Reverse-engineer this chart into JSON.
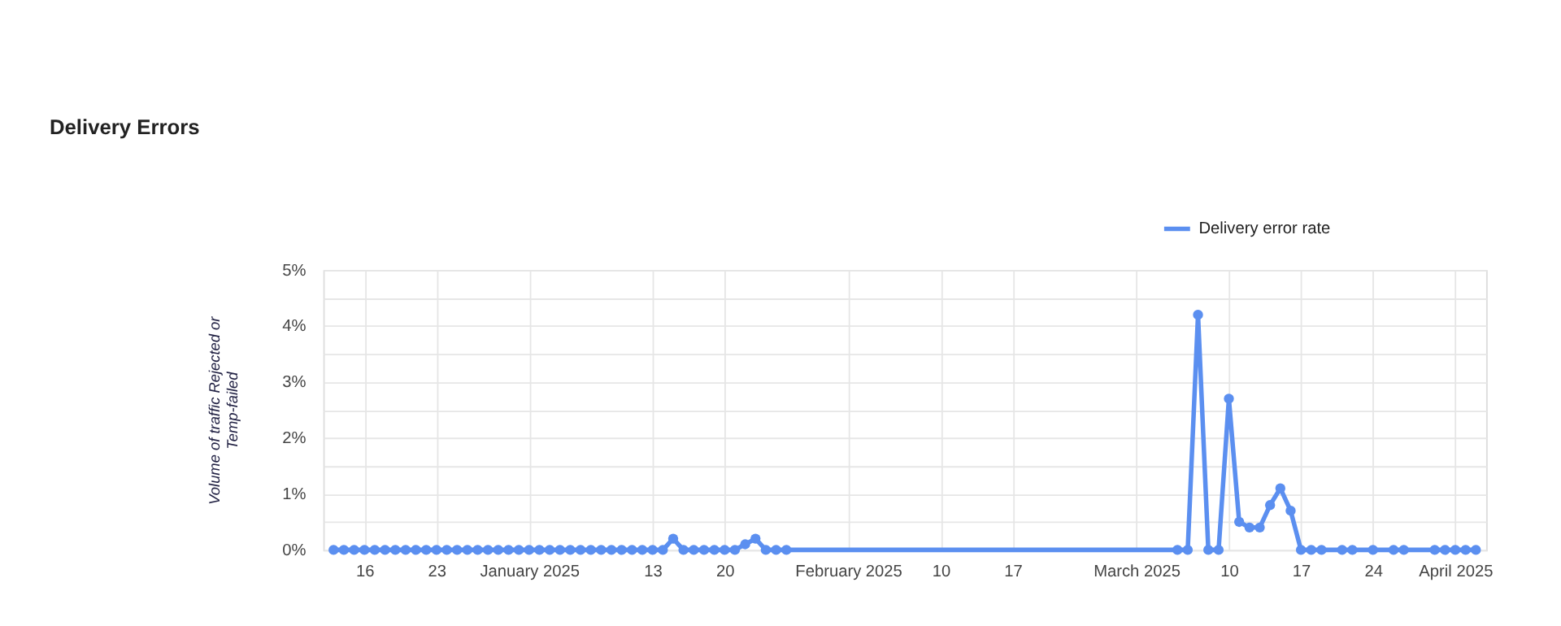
{
  "chart_data": {
    "type": "line",
    "title": "Delivery Errors",
    "ylabel": "Volume of traffic Rejected or Temp-failed",
    "x": [
      "2024-12-13",
      "2024-12-14",
      "2024-12-15",
      "2024-12-16",
      "2024-12-17",
      "2024-12-18",
      "2024-12-19",
      "2024-12-20",
      "2024-12-21",
      "2024-12-22",
      "2024-12-23",
      "2024-12-24",
      "2024-12-25",
      "2024-12-26",
      "2024-12-27",
      "2024-12-28",
      "2024-12-29",
      "2024-12-30",
      "2024-12-31",
      "2025-01-01",
      "2025-01-02",
      "2025-01-03",
      "2025-01-04",
      "2025-01-05",
      "2025-01-06",
      "2025-01-07",
      "2025-01-08",
      "2025-01-09",
      "2025-01-10",
      "2025-01-11",
      "2025-01-12",
      "2025-01-13",
      "2025-01-14",
      "2025-01-15",
      "2025-01-16",
      "2025-01-17",
      "2025-01-18",
      "2025-01-19",
      "2025-01-20",
      "2025-01-21",
      "2025-01-22",
      "2025-01-23",
      "2025-01-24",
      "2025-01-25",
      "2025-01-26",
      "2025-03-05",
      "2025-03-06",
      "2025-03-07",
      "2025-03-08",
      "2025-03-09",
      "2025-03-10",
      "2025-03-11",
      "2025-03-12",
      "2025-03-13",
      "2025-03-14",
      "2025-03-15",
      "2025-03-16",
      "2025-03-17",
      "2025-03-18",
      "2025-03-19",
      "2025-03-21",
      "2025-03-22",
      "2025-03-24",
      "2025-03-26",
      "2025-03-27",
      "2025-03-30",
      "2025-03-31",
      "2025-04-01",
      "2025-04-02",
      "2025-04-03"
    ],
    "series": [
      {
        "name": "Delivery error rate",
        "color": "#5b8ff0",
        "values": [
          0,
          0,
          0,
          0,
          0,
          0,
          0,
          0,
          0,
          0,
          0,
          0,
          0,
          0,
          0,
          0,
          0,
          0,
          0,
          0,
          0,
          0,
          0,
          0,
          0,
          0,
          0,
          0,
          0,
          0,
          0,
          0,
          0,
          0.2,
          0,
          0,
          0,
          0,
          0,
          0,
          0.1,
          0.2,
          0,
          0,
          0,
          0,
          0,
          4.2,
          0,
          0,
          2.7,
          0.5,
          0.4,
          0.4,
          0.8,
          1.1,
          0.7,
          0,
          0,
          0,
          0,
          0,
          0,
          0,
          0,
          0,
          0,
          0,
          0,
          0
        ]
      }
    ],
    "xlim": [
      "2024-12-12",
      "2025-04-04"
    ],
    "xticks": [
      {
        "value": "2024-12-16",
        "label": "16"
      },
      {
        "value": "2024-12-23",
        "label": "23"
      },
      {
        "value": "2025-01-01",
        "label": "January 2025"
      },
      {
        "value": "2025-01-13",
        "label": "13"
      },
      {
        "value": "2025-01-20",
        "label": "20"
      },
      {
        "value": "2025-02-01",
        "label": "February 2025"
      },
      {
        "value": "2025-02-10",
        "label": "10"
      },
      {
        "value": "2025-02-17",
        "label": "17"
      },
      {
        "value": "2025-03-01",
        "label": "March 2025"
      },
      {
        "value": "2025-03-10",
        "label": "10"
      },
      {
        "value": "2025-03-17",
        "label": "17"
      },
      {
        "value": "2025-03-24",
        "label": "24"
      },
      {
        "value": "2025-04-01",
        "label": "April 2025"
      }
    ],
    "ylim": [
      0,
      5
    ],
    "yticks": [
      {
        "value": 0,
        "label": "0%"
      },
      {
        "value": 0.5,
        "label": null
      },
      {
        "value": 1,
        "label": "1%"
      },
      {
        "value": 1.5,
        "label": null
      },
      {
        "value": 2,
        "label": "2%"
      },
      {
        "value": 2.5,
        "label": null
      },
      {
        "value": 3,
        "label": "3%"
      },
      {
        "value": 3.5,
        "label": null
      },
      {
        "value": 4,
        "label": "4%"
      },
      {
        "value": 4.5,
        "label": null
      },
      {
        "value": 5,
        "label": "5%"
      }
    ],
    "grid": true,
    "legend": "top right",
    "marker": "circle",
    "line_style": "solid"
  }
}
